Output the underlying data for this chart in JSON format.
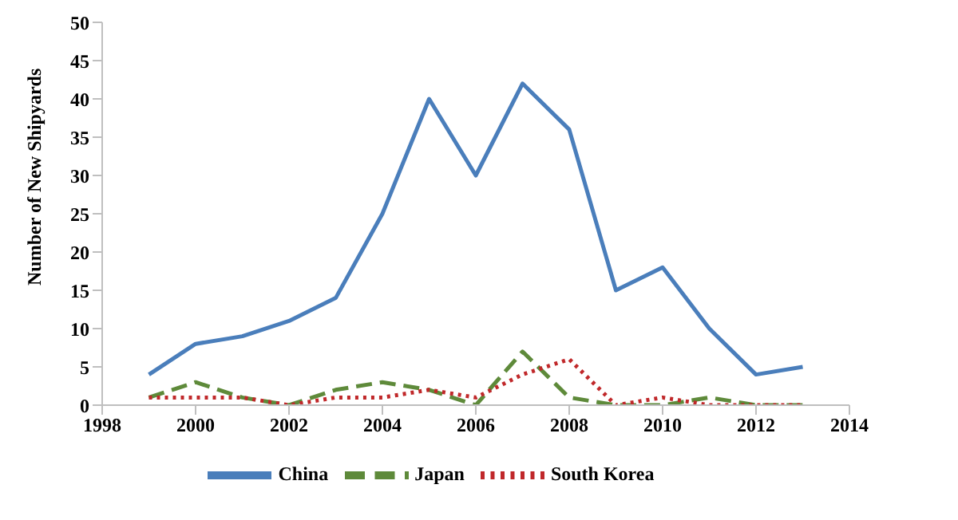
{
  "chart_data": {
    "type": "line",
    "ylabel": "Number of New Shipyards",
    "x": [
      1999,
      2000,
      2001,
      2002,
      2003,
      2004,
      2005,
      2006,
      2007,
      2008,
      2009,
      2010,
      2011,
      2012,
      2013
    ],
    "series": [
      {
        "name": "China",
        "color": "#4a7ebb",
        "line_style": "solid",
        "values": [
          4,
          8,
          9,
          11,
          14,
          25,
          40,
          30,
          42,
          36,
          15,
          18,
          10,
          4,
          5
        ]
      },
      {
        "name": "Japan",
        "color": "#5e8a3a",
        "line_style": "dashed",
        "values": [
          1,
          3,
          1,
          0,
          2,
          3,
          2,
          0,
          7,
          1,
          0,
          0,
          1,
          0,
          0
        ]
      },
      {
        "name": "South Korea",
        "color": "#c0282a",
        "line_style": "dotted",
        "values": [
          1,
          1,
          1,
          0,
          1,
          1,
          2,
          1,
          4,
          6,
          0,
          1,
          0,
          0,
          0
        ]
      }
    ],
    "xlim": [
      1998,
      2014
    ],
    "xticks": [
      1998,
      2000,
      2002,
      2004,
      2006,
      2008,
      2010,
      2012,
      2014
    ],
    "ylim": [
      0,
      50
    ],
    "yticks": [
      0,
      5,
      10,
      15,
      20,
      25,
      30,
      35,
      40,
      45,
      50
    ],
    "grid": false,
    "legend": "bottom",
    "marker": "none"
  }
}
